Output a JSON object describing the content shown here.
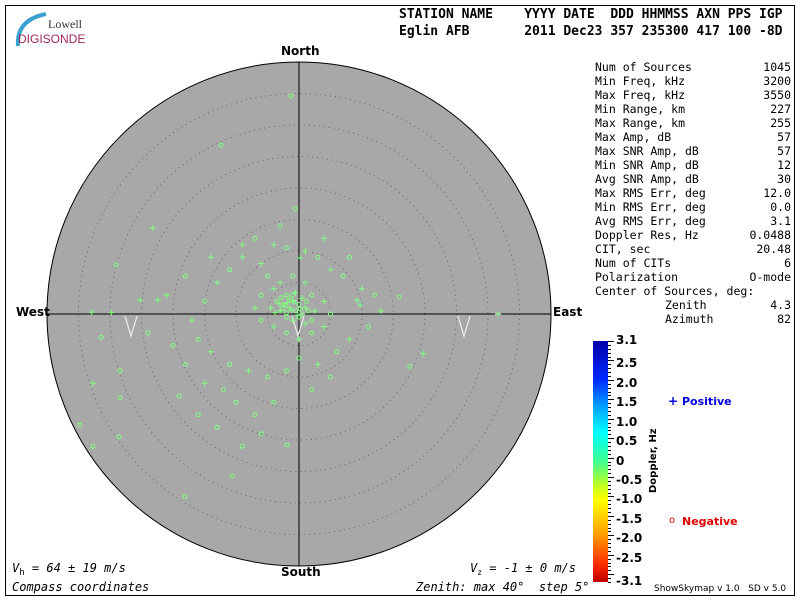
{
  "logo": {
    "line1": "Lowell",
    "line2": "DIGISONDE"
  },
  "header": {
    "labels": "STATION NAME    YYYY DATE  DDD HHMMSS AXN PPS IGP",
    "values": "Eglin AFB       2011 Dec23 357 235300 417 100 -8D"
  },
  "stats": [
    {
      "label": "Num of Sources",
      "value": "1045"
    },
    {
      "label": "Min Freq, kHz",
      "value": "3200"
    },
    {
      "label": "Max Freq, kHz",
      "value": "3550"
    },
    {
      "label": "Min Range, km",
      "value": "227"
    },
    {
      "label": "Max Range, km",
      "value": "255"
    },
    {
      "label": "Max Amp, dB",
      "value": "57"
    },
    {
      "label": "Max SNR Amp, dB",
      "value": "57"
    },
    {
      "label": "Min SNR Amp, dB",
      "value": "12"
    },
    {
      "label": "Avg SNR Amp, dB",
      "value": "30"
    },
    {
      "label": "Max RMS Err, deg",
      "value": "12.0"
    },
    {
      "label": "Min RMS Err, deg",
      "value": "0.0"
    },
    {
      "label": "Avg RMS Err, deg",
      "value": "3.1"
    },
    {
      "label": "Doppler Res, Hz",
      "value": "0.0488"
    },
    {
      "label": "CIT, sec",
      "value": "20.48"
    },
    {
      "label": "Num of CITs",
      "value": "6"
    },
    {
      "label": "Polarization",
      "value": "O-mode"
    }
  ],
  "center": {
    "title": "Center of Sources, deg:",
    "zenith_label": "Zenith",
    "zenith": "4.3",
    "azimuth_label": "Azimuth",
    "azimuth": "82"
  },
  "colorbar": {
    "title": "Doppler, Hz",
    "ticks": [
      "3.1",
      "2.5",
      "2.0",
      "1.5",
      "1.0",
      "0.5",
      "0",
      "-0.5",
      "-1.0",
      "-1.5",
      "-2.0",
      "-2.5",
      "-3.1"
    ],
    "tick_values": [
      3.1,
      2.5,
      2.0,
      1.5,
      1.0,
      0.5,
      0,
      -0.5,
      -1.0,
      -1.5,
      -2.0,
      -2.5,
      -3.1
    ],
    "range": [
      -3.1,
      3.1
    ]
  },
  "legend": {
    "positive_symbol": "+",
    "positive": "Positive",
    "negative_symbol": "o",
    "negative": "Negative",
    "positive_color": "#0000e0",
    "negative_color": "#e00000"
  },
  "footer": {
    "vh": "= 64 ± 19 m/s",
    "vh_sym": "V",
    "vh_sub": "h",
    "vz": "= -1 ± 0 m/s",
    "vz_sym": "V",
    "vz_sub": "z",
    "coords": "Compass coordinates",
    "zenith": "Zenith: max 40°  step 5°",
    "version": "ShowSkymap v 1.0   SD v 5.0"
  },
  "chart_data": {
    "type": "scatter",
    "projection": "polar sky map, compass coordinates",
    "directions": {
      "north": "North",
      "south": "South",
      "east": "East",
      "west": "West"
    },
    "zenith_max_deg": 40,
    "zenith_step_deg": 5,
    "background": "#a8a8a8",
    "marker_color": "#80ff80",
    "point_format": "[east_deg, north_deg, 0=plus(positive) 1=circle(negative)]",
    "points": [
      [
        -1.3,
        34.6,
        1
      ],
      [
        -12.4,
        26.8,
        1
      ],
      [
        -0.6,
        16.7,
        1
      ],
      [
        -23.2,
        13.7,
        0
      ],
      [
        -29,
        7.8,
        1
      ],
      [
        -32.9,
        0.3,
        0
      ],
      [
        -29.8,
        0.2,
        0
      ],
      [
        -31.4,
        -3.7,
        1
      ],
      [
        -28.4,
        -9,
        1
      ],
      [
        -32.7,
        -11,
        0
      ],
      [
        -28.4,
        -13.3,
        1
      ],
      [
        -34.8,
        -17.6,
        1
      ],
      [
        -32.7,
        -21,
        1
      ],
      [
        -28.6,
        -19.5,
        1
      ],
      [
        -18.1,
        -29,
        1
      ],
      [
        -10.6,
        -25.7,
        1
      ],
      [
        -1.9,
        -20.8,
        1
      ],
      [
        31.6,
        0,
        0
      ],
      [
        17.6,
        -8.3,
        1
      ],
      [
        19.7,
        -6.3,
        0
      ],
      [
        15.9,
        2.7,
        1
      ],
      [
        9.7,
        1.4,
        0
      ],
      [
        9.2,
        2.2,
        0
      ],
      [
        -22.4,
        2.2,
        0
      ],
      [
        -25.2,
        2.2,
        0
      ],
      [
        0.2,
        8.9,
        0
      ],
      [
        -9,
        11,
        0
      ],
      [
        -7,
        12,
        1
      ],
      [
        -4,
        11,
        0
      ],
      [
        -2,
        10.5,
        1
      ],
      [
        1,
        10,
        0
      ],
      [
        3,
        9,
        1
      ],
      [
        5,
        7,
        0
      ],
      [
        7,
        6,
        1
      ],
      [
        10,
        4,
        0
      ],
      [
        12,
        3,
        1
      ],
      [
        13,
        0.5,
        0
      ],
      [
        11,
        -2,
        1
      ],
      [
        8,
        -4,
        0
      ],
      [
        6,
        -6,
        1
      ],
      [
        3,
        -8,
        0
      ],
      [
        0,
        -7,
        1
      ],
      [
        -2,
        -9,
        1
      ],
      [
        -5,
        -10,
        1
      ],
      [
        -8,
        -9,
        0
      ],
      [
        -11,
        -8,
        1
      ],
      [
        -14,
        -6,
        0
      ],
      [
        -16,
        -4,
        1
      ],
      [
        -17,
        -1,
        0
      ],
      [
        -15,
        2,
        1
      ],
      [
        -13,
        5,
        0
      ],
      [
        -11,
        7,
        1
      ],
      [
        -9,
        9,
        0
      ],
      [
        -6,
        8,
        0
      ],
      [
        -5,
        6,
        1
      ],
      [
        -3,
        5,
        0
      ],
      [
        -1,
        6,
        1
      ],
      [
        1,
        5,
        0
      ],
      [
        2,
        3,
        1
      ],
      [
        4,
        2,
        0
      ],
      [
        5,
        0,
        1
      ],
      [
        4,
        -2,
        0
      ],
      [
        2,
        -3,
        1
      ],
      [
        0,
        -4,
        0
      ],
      [
        -2,
        -3,
        1
      ],
      [
        -4,
        -2,
        0
      ],
      [
        -6,
        -1,
        1
      ],
      [
        -7,
        1,
        0
      ],
      [
        -6,
        3,
        1
      ],
      [
        -4,
        4,
        0
      ],
      [
        -2,
        3,
        1
      ],
      [
        -1,
        2,
        0
      ],
      [
        0,
        1.5,
        1
      ],
      [
        1,
        1,
        0
      ],
      [
        1.5,
        0.5,
        1
      ],
      [
        0.5,
        0,
        0
      ],
      [
        -0.5,
        0.5,
        1
      ],
      [
        -1.5,
        1,
        0
      ],
      [
        -2.5,
        1.5,
        1
      ],
      [
        -3,
        0.5,
        0
      ],
      [
        -2,
        -0.5,
        1
      ],
      [
        -1,
        -1,
        0
      ],
      [
        0,
        -0.5,
        1
      ],
      [
        1,
        -1.5,
        0
      ],
      [
        2,
        -1,
        1
      ],
      [
        2.5,
        0.5,
        0
      ],
      [
        -3.5,
        2,
        1
      ],
      [
        -4.5,
        1,
        0
      ],
      [
        -1,
        3,
        1
      ],
      [
        0.5,
        2.5,
        0
      ],
      [
        -2.2,
        1.4,
        1
      ],
      [
        -1.8,
        1.8,
        0
      ],
      [
        -2.6,
        0.9,
        1
      ],
      [
        -1.2,
        0.6,
        0
      ],
      [
        -0.8,
        1.9,
        1
      ],
      [
        -3.2,
        1.6,
        0
      ],
      [
        -2.0,
        0.2,
        1
      ],
      [
        -1.5,
        2.4,
        0
      ],
      [
        0.2,
        0.8,
        1
      ],
      [
        -0.2,
        -0.2,
        0
      ],
      [
        -2.8,
        2.6,
        1
      ],
      [
        -3.8,
        0.2,
        0
      ],
      [
        1.2,
        2,
        1
      ],
      [
        -0.6,
        3.4,
        0
      ],
      [
        -10,
        -14,
        1
      ],
      [
        -7,
        -16,
        1
      ],
      [
        -4,
        -14,
        1
      ],
      [
        -12,
        -12,
        1
      ],
      [
        -15,
        -11,
        0
      ],
      [
        -18,
        -8,
        1
      ],
      [
        -20,
        -5,
        1
      ],
      [
        -19,
        -13,
        1
      ],
      [
        -13,
        -18,
        1
      ],
      [
        -6,
        -19,
        1
      ],
      [
        2,
        -12,
        1
      ],
      [
        5,
        -10,
        1
      ],
      [
        -21,
        3,
        0
      ],
      [
        -18,
        6,
        1
      ],
      [
        -14,
        9,
        0
      ],
      [
        -3,
        14,
        1
      ],
      [
        4,
        12,
        0
      ],
      [
        8,
        9,
        1
      ],
      [
        -24,
        -3,
        1
      ],
      [
        -9,
        -21,
        1
      ],
      [
        -16,
        -16,
        1
      ]
    ]
  }
}
